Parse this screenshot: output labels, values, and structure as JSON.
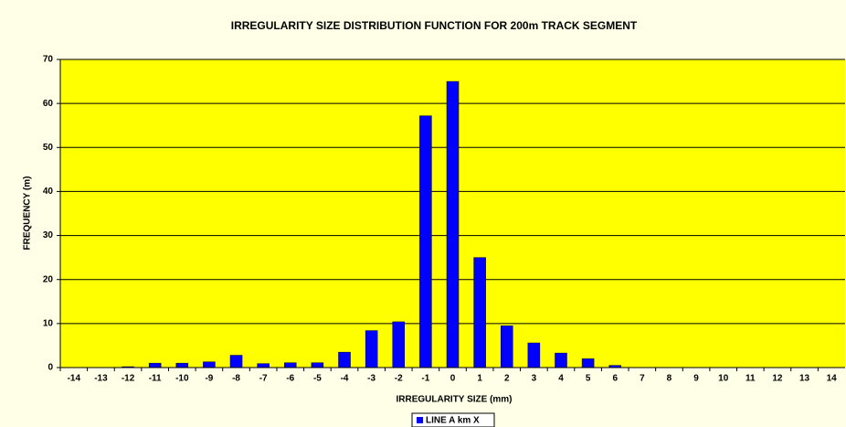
{
  "chart_data": {
    "type": "bar",
    "title": "IRREGULARITY SIZE DISTRIBUTION FUNCTION FOR 200m TRACK SEGMENT",
    "xlabel": "IRREGULARITY SIZE (mm)",
    "ylabel": "FREQUENCY (m)",
    "categories": [
      "-14",
      "-13",
      "-12",
      "-11",
      "-10",
      "-9",
      "-8",
      "-7",
      "-6",
      "-5",
      "-4",
      "-3",
      "-2",
      "-1",
      "0",
      "1",
      "2",
      "3",
      "4",
      "5",
      "6",
      "7",
      "8",
      "9",
      "10",
      "11",
      "12",
      "13",
      "14"
    ],
    "series": [
      {
        "name": "LINE A km X",
        "color": "#0000ff",
        "values": [
          0,
          0,
          0.2,
          1,
          1,
          1.3,
          2.8,
          0.9,
          1.1,
          1.1,
          3.5,
          8.4,
          10.4,
          57.2,
          65,
          25,
          9.5,
          5.6,
          3.3,
          2,
          0.5,
          0,
          0,
          0,
          0,
          0,
          0,
          0,
          0
        ]
      }
    ],
    "ylim": [
      0,
      70
    ],
    "yticks": [
      0,
      10,
      20,
      30,
      40,
      50,
      60,
      70
    ],
    "grid": true,
    "legend": "bottom"
  }
}
